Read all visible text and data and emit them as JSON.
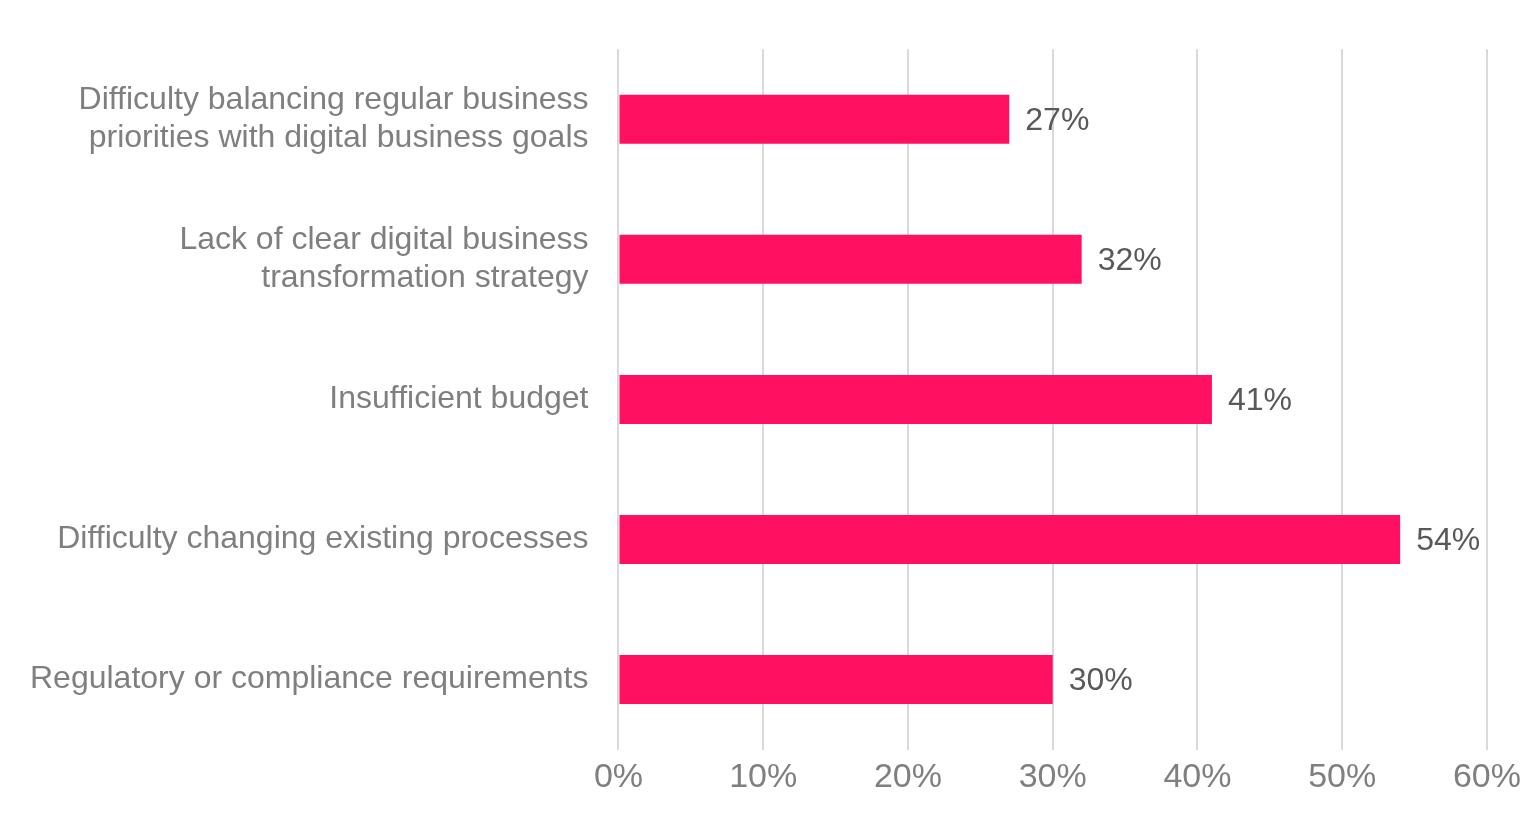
{
  "chart_data": {
    "type": "bar",
    "orientation": "horizontal",
    "categories": [
      "Difficulty balancing regular business priorities with digital business goals",
      "Lack of clear digital business transformation strategy",
      "Insufficient budget",
      "Difficulty changing existing processes",
      "Regulatory or compliance requirements"
    ],
    "values": [
      27,
      32,
      41,
      54,
      30
    ],
    "value_labels": [
      "27%",
      "32%",
      "41%",
      "54%",
      "30%"
    ],
    "color": "#ff1060",
    "xlim": [
      0,
      60
    ],
    "xticks": [
      {
        "value": 0,
        "label": "0%"
      },
      {
        "value": 10,
        "label": "10%"
      },
      {
        "value": 20,
        "label": "20%"
      },
      {
        "value": 30,
        "label": "30%"
      },
      {
        "value": 40,
        "label": "40%"
      },
      {
        "value": 50,
        "label": "50%"
      },
      {
        "value": 60,
        "label": "60%"
      }
    ],
    "grid": "x",
    "legend": false
  }
}
